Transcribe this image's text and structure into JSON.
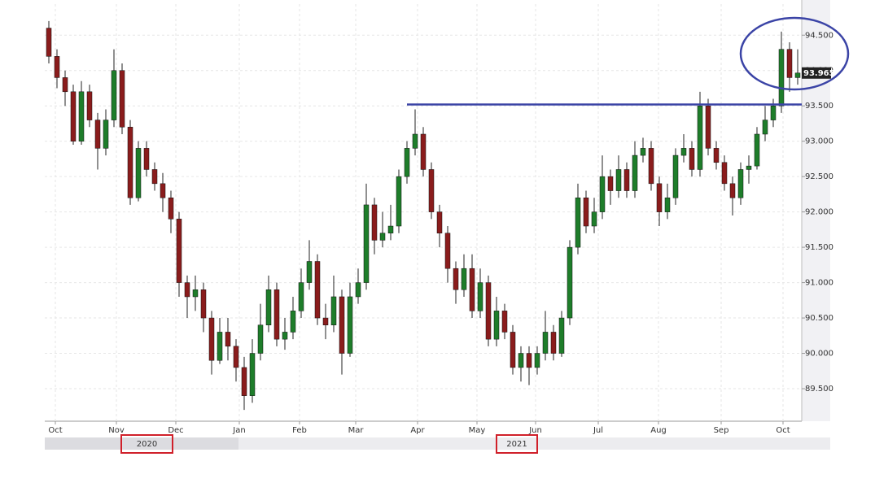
{
  "chart_data": {
    "type": "candlestick",
    "up_color": "#1e7d2a",
    "down_color": "#8a1c1c",
    "wick_color": "#222222",
    "grid": true,
    "xlim": [
      -0.5,
      92.5
    ],
    "xticks": [
      {
        "value": 0.8,
        "label": "Oct"
      },
      {
        "value": 8.3,
        "label": "Nov"
      },
      {
        "value": 15.6,
        "label": "Dec"
      },
      {
        "value": 23.4,
        "label": "Jan"
      },
      {
        "value": 30.8,
        "label": "Feb"
      },
      {
        "value": 37.7,
        "label": "Mar"
      },
      {
        "value": 45.3,
        "label": "Apr"
      },
      {
        "value": 52.6,
        "label": "May"
      },
      {
        "value": 59.8,
        "label": "Jun"
      },
      {
        "value": 67.5,
        "label": "Jul"
      },
      {
        "value": 74.9,
        "label": "Aug"
      },
      {
        "value": 82.6,
        "label": "Sep"
      },
      {
        "value": 90.2,
        "label": "Oct"
      }
    ],
    "ylim": [
      89.04,
      94.94
    ],
    "yticks": [
      {
        "value": 89.5,
        "label": "89.500"
      },
      {
        "value": 90,
        "label": "90.000"
      },
      {
        "value": 90.5,
        "label": "90.500"
      },
      {
        "value": 91,
        "label": "91.000"
      },
      {
        "value": 91.5,
        "label": "91.500"
      },
      {
        "value": 92,
        "label": "92.000"
      },
      {
        "value": 92.5,
        "label": "92.500"
      },
      {
        "value": 93,
        "label": "93.000"
      },
      {
        "value": 93.5,
        "label": "93.500"
      },
      {
        "value": 94,
        "label": "94.000"
      },
      {
        "value": 94.5,
        "label": "94.500"
      }
    ],
    "year_labels": [
      "2020",
      "2021"
    ],
    "hline": 93.52,
    "hline_color": "#3b44a6",
    "open": [
      94.6,
      94.2,
      93.9,
      93.7,
      93.0,
      93.7,
      93.3,
      92.9,
      93.3,
      94.0,
      93.2,
      92.2,
      92.9,
      92.6,
      92.4,
      92.2,
      91.9,
      91.0,
      90.8,
      90.9,
      90.5,
      89.9,
      90.3,
      90.1,
      89.8,
      89.4,
      90.0,
      90.4,
      90.9,
      90.2,
      90.3,
      90.6,
      91.0,
      91.3,
      90.5,
      90.4,
      90.8,
      90.0,
      90.8,
      91.0,
      92.1,
      91.6,
      91.7,
      91.8,
      92.5,
      92.9,
      93.1,
      92.6,
      92.0,
      91.7,
      91.2,
      90.9,
      91.2,
      90.6,
      91.0,
      90.2,
      90.6,
      90.3,
      89.8,
      90.0,
      89.8,
      90.0,
      90.3,
      90.0,
      90.5,
      91.5,
      92.2,
      91.8,
      92.0,
      92.5,
      92.3,
      92.6,
      92.3,
      92.8,
      92.9,
      92.4,
      92.0,
      92.2,
      92.8,
      92.9,
      92.6,
      93.5,
      92.9,
      92.7,
      92.4,
      92.2,
      92.6,
      92.65,
      93.1,
      93.3,
      93.5,
      94.3,
      93.9
    ],
    "high": [
      94.7,
      94.3,
      94.0,
      93.8,
      93.85,
      93.8,
      93.4,
      93.45,
      94.3,
      94.1,
      93.3,
      93.0,
      93.0,
      92.7,
      92.55,
      92.3,
      92.0,
      91.1,
      91.1,
      91.0,
      90.6,
      90.5,
      90.5,
      90.2,
      89.95,
      90.2,
      90.7,
      91.1,
      91.0,
      90.5,
      90.8,
      91.2,
      91.6,
      91.4,
      90.7,
      91.1,
      90.9,
      91.0,
      91.2,
      92.4,
      92.2,
      92.0,
      92.1,
      92.6,
      93.0,
      93.45,
      93.2,
      92.7,
      92.1,
      91.8,
      91.3,
      91.4,
      91.4,
      91.2,
      91.1,
      90.8,
      90.7,
      90.4,
      90.1,
      90.1,
      90.1,
      90.6,
      90.4,
      90.6,
      91.6,
      92.4,
      92.3,
      92.2,
      92.8,
      92.6,
      92.8,
      92.7,
      93.0,
      93.05,
      93.0,
      92.5,
      92.4,
      92.9,
      93.1,
      93.0,
      93.7,
      93.6,
      93.0,
      92.8,
      92.5,
      92.7,
      92.8,
      93.2,
      93.5,
      93.6,
      94.55,
      94.4,
      94.3
    ],
    "low": [
      94.1,
      93.75,
      93.5,
      92.95,
      92.95,
      93.2,
      92.6,
      92.8,
      93.2,
      93.1,
      92.1,
      92.15,
      92.5,
      92.3,
      92.0,
      91.7,
      90.8,
      90.5,
      90.6,
      90.3,
      89.7,
      89.85,
      89.9,
      89.6,
      89.2,
      89.3,
      89.9,
      90.3,
      90.1,
      90.05,
      90.2,
      90.5,
      90.9,
      90.4,
      90.2,
      90.3,
      89.7,
      89.95,
      90.7,
      90.9,
      91.4,
      91.5,
      91.6,
      91.7,
      92.4,
      92.8,
      92.5,
      91.9,
      91.5,
      91.0,
      90.7,
      90.8,
      90.5,
      90.5,
      90.1,
      90.1,
      90.2,
      89.7,
      89.6,
      89.55,
      89.7,
      89.9,
      89.9,
      89.95,
      90.4,
      91.4,
      91.7,
      91.7,
      91.9,
      92.1,
      92.2,
      92.2,
      92.2,
      92.7,
      92.3,
      91.8,
      91.9,
      92.1,
      92.7,
      92.5,
      92.5,
      92.8,
      92.6,
      92.3,
      91.95,
      92.1,
      92.4,
      92.6,
      93.0,
      93.2,
      93.4,
      93.7,
      93.8
    ],
    "close": [
      94.2,
      93.9,
      93.7,
      93.0,
      93.7,
      93.3,
      92.9,
      93.3,
      94.0,
      93.2,
      92.2,
      92.9,
      92.6,
      92.4,
      92.2,
      91.9,
      91.0,
      90.8,
      90.9,
      90.5,
      89.9,
      90.3,
      90.1,
      89.8,
      89.4,
      90.0,
      90.4,
      90.9,
      90.2,
      90.3,
      90.6,
      91.0,
      91.3,
      90.5,
      90.4,
      90.8,
      90.0,
      90.8,
      91.0,
      92.1,
      91.6,
      91.7,
      91.8,
      92.5,
      92.9,
      93.1,
      92.6,
      92.0,
      91.7,
      91.2,
      90.9,
      91.2,
      90.6,
      91.0,
      90.2,
      90.6,
      90.3,
      89.8,
      90.0,
      89.8,
      90.0,
      90.3,
      90.0,
      90.5,
      91.5,
      92.2,
      91.8,
      92.0,
      92.5,
      92.3,
      92.6,
      92.3,
      92.8,
      92.9,
      92.4,
      92.0,
      92.2,
      92.8,
      92.9,
      92.6,
      93.5,
      92.9,
      92.7,
      92.4,
      92.2,
      92.6,
      92.65,
      93.1,
      93.3,
      93.5,
      94.3,
      93.9,
      93.965
    ]
  }
}
